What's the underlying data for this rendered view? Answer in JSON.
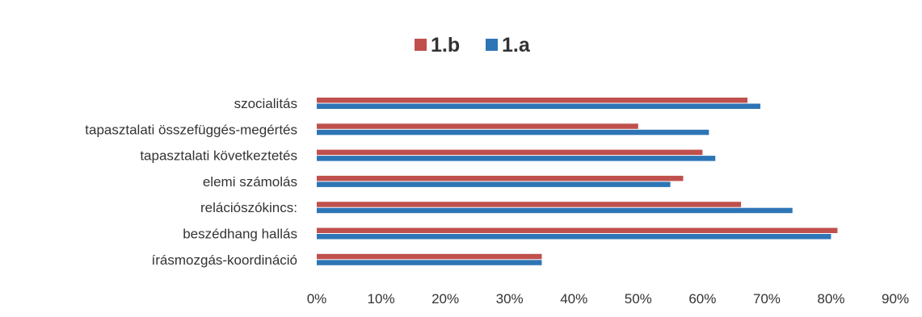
{
  "chart_data": {
    "type": "bar",
    "orientation": "horizontal",
    "categories": [
      "szocialitás",
      "tapasztalati összefüggés-megértés",
      "tapasztalati következtetés",
      "elemi számolás",
      "relációszókincs:",
      "beszédhang hallás",
      "írásmozgás-koordináció"
    ],
    "series": [
      {
        "name": "1.b",
        "color": "#c0504d",
        "values": [
          67,
          50,
          60,
          57,
          66,
          81,
          35
        ]
      },
      {
        "name": "1.a",
        "color": "#2e75b6",
        "values": [
          69,
          61,
          62,
          55,
          74,
          80,
          35
        ]
      }
    ],
    "xlim": [
      0,
      90
    ],
    "xticks": [
      "0%",
      "10%",
      "20%",
      "30%",
      "40%",
      "50%",
      "60%",
      "70%",
      "80%",
      "90%"
    ],
    "legend_position": "top",
    "grid": false
  }
}
